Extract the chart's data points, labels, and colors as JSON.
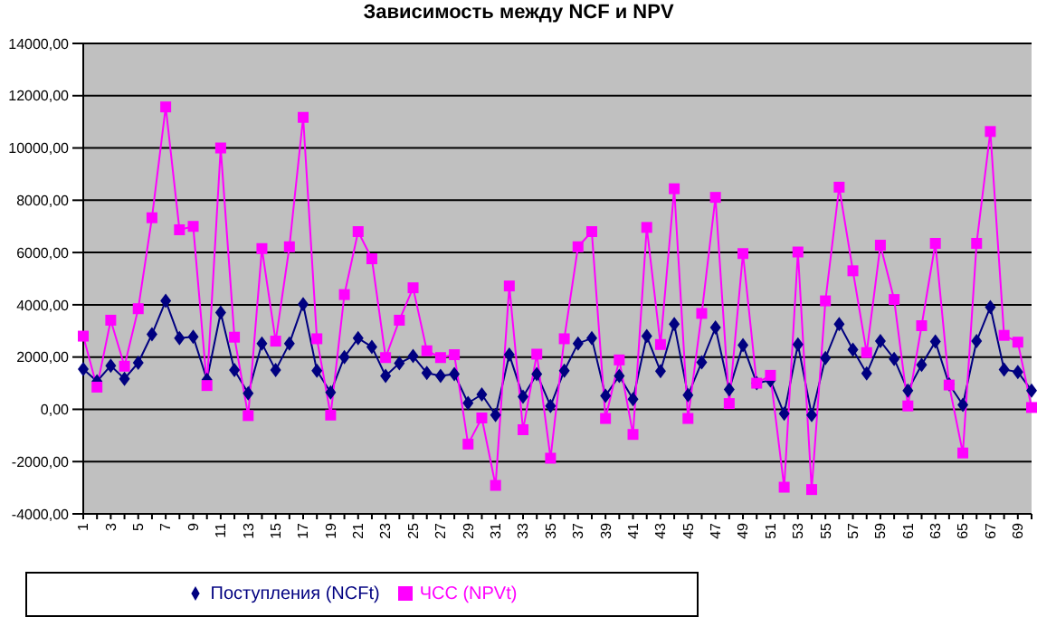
{
  "chart_data": {
    "type": "line",
    "title": "Зависимость между NCF и NPV",
    "categories": [
      "1",
      null,
      "3",
      null,
      "5",
      null,
      "7",
      null,
      "9",
      null,
      "11",
      null,
      "13",
      null,
      "15",
      null,
      "17",
      null,
      "19",
      null,
      "21",
      null,
      "23",
      null,
      "25",
      null,
      "27",
      null,
      "29",
      null,
      "31",
      null,
      "33",
      null,
      "35",
      null,
      "37",
      null,
      "39",
      null,
      "41",
      null,
      "43",
      null,
      "45",
      null,
      "47",
      null,
      "49",
      null,
      "51",
      null,
      "53",
      null,
      "55",
      null,
      "57",
      null,
      "59",
      null,
      "61",
      null,
      "63",
      null,
      "65",
      null,
      "67",
      null,
      "69",
      null
    ],
    "series": [
      {
        "name": "Поступления (NCFt)",
        "color": "#000080",
        "marker": "diamond",
        "values": [
          1540,
          1070,
          1670,
          1170,
          1780,
          2870,
          4150,
          2720,
          2780,
          1130,
          3700,
          1500,
          610,
          2520,
          1500,
          2520,
          4020,
          1480,
          650,
          2000,
          2720,
          2390,
          1280,
          1760,
          2040,
          1390,
          1280,
          1350,
          240,
          570,
          -220,
          2090,
          480,
          1350,
          130,
          1480,
          2520,
          2720,
          520,
          1280,
          390,
          2800,
          1460,
          3260,
          540,
          1800,
          3130,
          760,
          2460,
          1000,
          1110,
          -170,
          2480,
          -220,
          1960,
          3260,
          2280,
          1370,
          2610,
          1930,
          720,
          1700,
          2590,
          960,
          170,
          2610,
          3910,
          1520,
          1430,
          720
        ]
      },
      {
        "name": "ЧСС (NPVt)",
        "color": "#ff00ff",
        "marker": "square",
        "values": [
          2800,
          850,
          3410,
          1650,
          3850,
          7330,
          11570,
          6870,
          7000,
          910,
          10000,
          2760,
          -240,
          6150,
          2610,
          6220,
          11170,
          2700,
          -220,
          4390,
          6800,
          5760,
          1980,
          3410,
          4650,
          2240,
          1980,
          2090,
          -1330,
          -330,
          -2910,
          4720,
          -780,
          2110,
          -1870,
          2700,
          6220,
          6800,
          -350,
          1890,
          -960,
          6960,
          2480,
          8440,
          -350,
          3670,
          8110,
          220,
          5960,
          1000,
          1300,
          -2980,
          6020,
          -3070,
          4150,
          8500,
          5300,
          2170,
          6280,
          4200,
          130,
          3200,
          6350,
          930,
          -1670,
          6350,
          10630,
          2830,
          2570,
          70
        ]
      }
    ],
    "ylim": [
      -4000,
      14000
    ],
    "yticks": [
      {
        "value": -4000,
        "label": "-4000,00"
      },
      {
        "value": -2000,
        "label": "-2000,00"
      },
      {
        "value": 0,
        "label": "0,00"
      },
      {
        "value": 2000,
        "label": "2000,00"
      },
      {
        "value": 4000,
        "label": "4000,00"
      },
      {
        "value": 6000,
        "label": "6000,00"
      },
      {
        "value": 8000,
        "label": "8000,00"
      },
      {
        "value": 10000,
        "label": "10000,00"
      },
      {
        "value": 12000,
        "label": "12000,00"
      },
      {
        "value": 14000,
        "label": "14000,00"
      }
    ],
    "grid": "y",
    "legend": "bottom",
    "line_style": "solid"
  }
}
